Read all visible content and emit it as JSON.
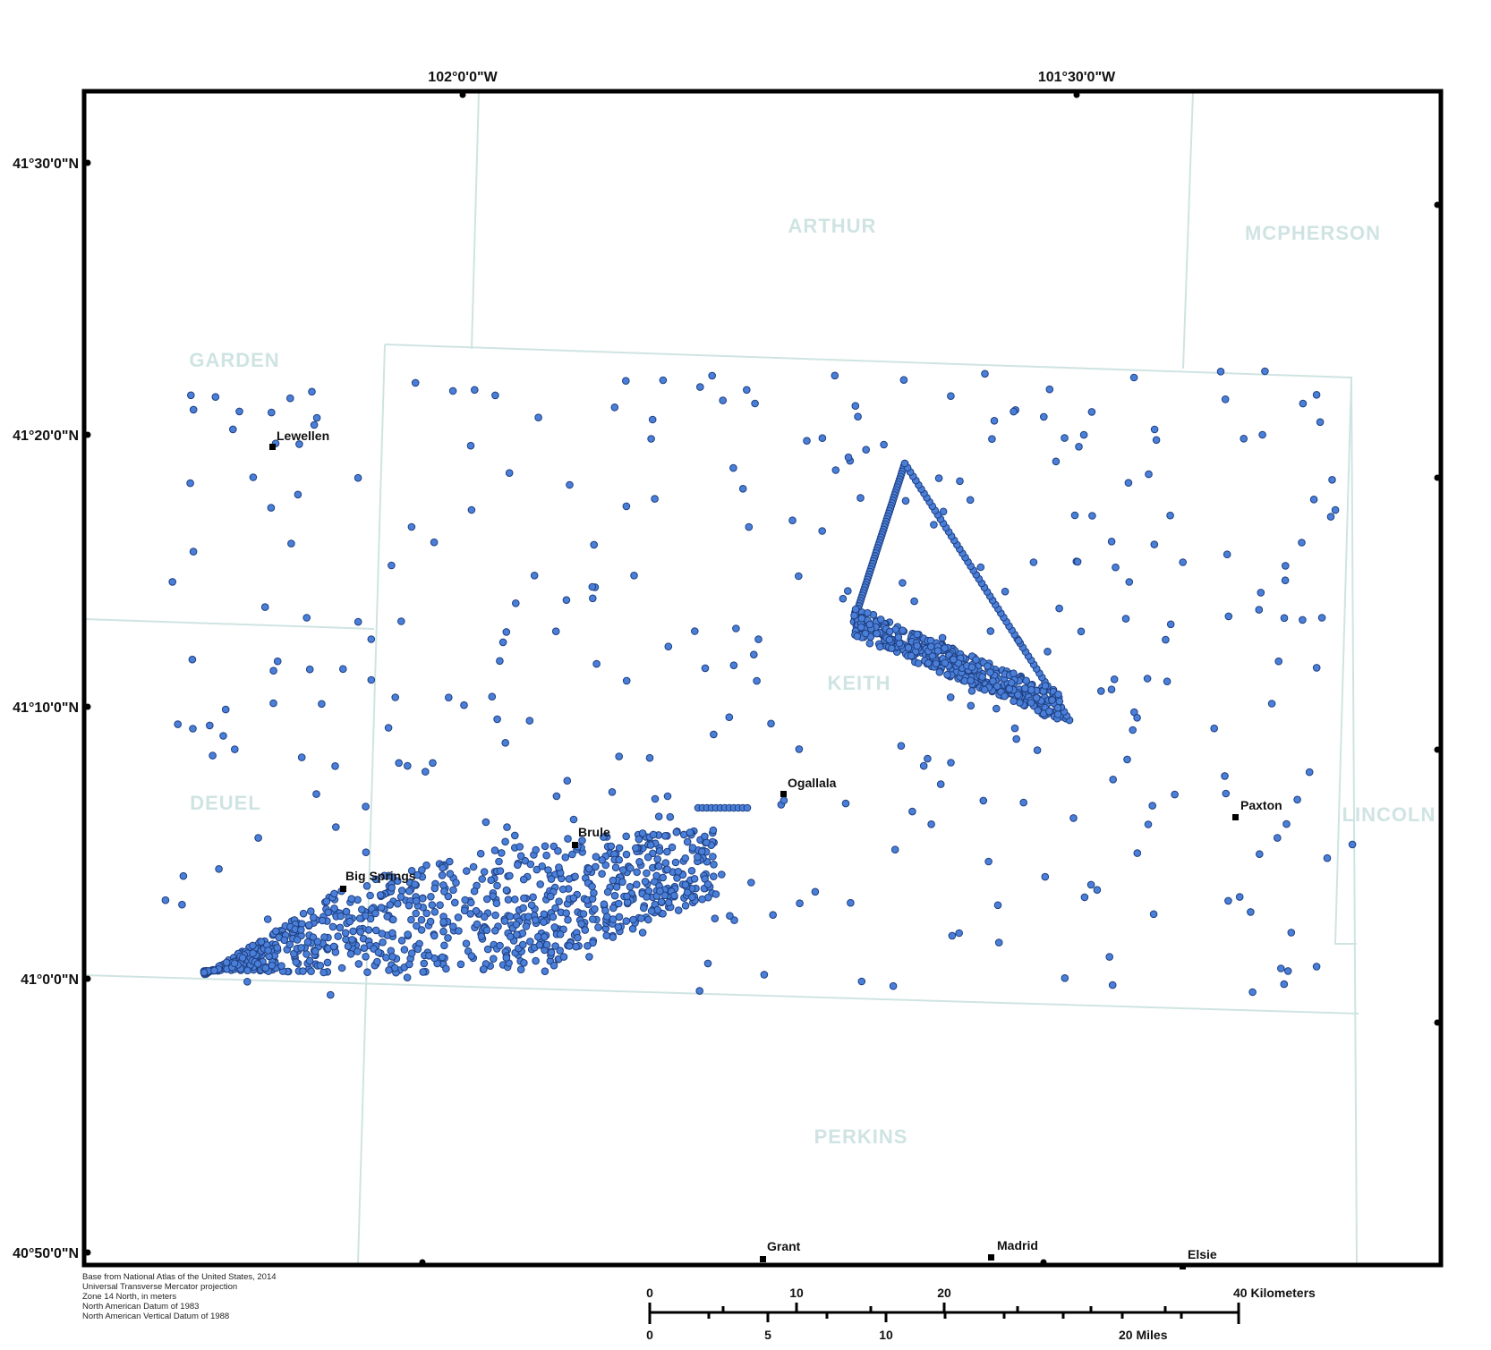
{
  "map": {
    "lon_ticks": [
      {
        "label": "102°0'0\"W",
        "value": -102.0
      },
      {
        "label": "101°30'0\"W",
        "value": -101.5
      }
    ],
    "lat_ticks": [
      {
        "label": "41°30'0\"N",
        "value": 41.5
      },
      {
        "label": "41°20'0\"N",
        "value": 41.3333
      },
      {
        "label": "41°10'0\"N",
        "value": 41.1667
      },
      {
        "label": "41°0'0\"N",
        "value": 41.0
      },
      {
        "label": "40°50'0\"N",
        "value": 40.8333
      }
    ],
    "counties": [
      "ARTHUR",
      "MCPHERSON",
      "GARDEN",
      "KEITH",
      "DEUEL",
      "LINCOLN",
      "PERKINS"
    ],
    "towns": [
      "Lewellen",
      "Ogallala",
      "Brule",
      "Big Springs",
      "Paxton",
      "Grant",
      "Madrid",
      "Elsie"
    ],
    "scale_km": [
      "0",
      "10",
      "20",
      "40 Kilometers"
    ],
    "scale_mi": [
      "0",
      "5",
      "10",
      "20 Miles"
    ],
    "credits": [
      "Base from National Atlas of the United States, 2014",
      "Universal Transverse Mercator projection",
      "Zone 14 North, in meters",
      "North American Datum of 1983",
      "North American Vertical Datum of 1988"
    ],
    "colors": {
      "points": "#4a7fd9",
      "point_stroke": "#1f3f80",
      "county_line": "#cfe4e2",
      "county_label": "#cfe4e2",
      "frame": "#000000"
    }
  }
}
